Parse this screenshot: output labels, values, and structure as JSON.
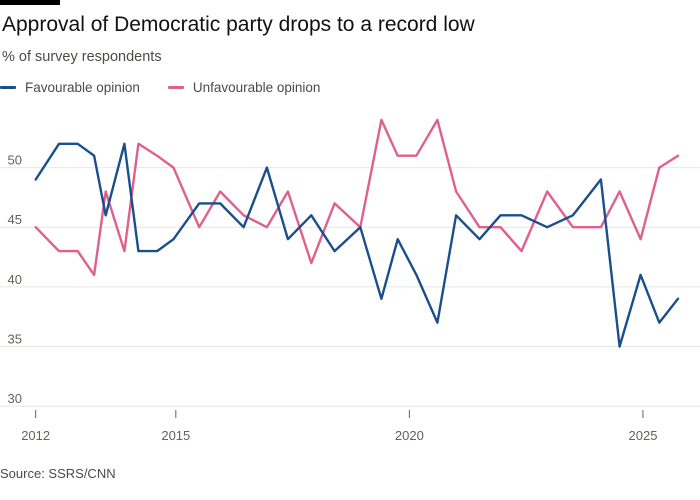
{
  "chart_data": {
    "type": "line",
    "title": "Approval of Democratic party drops to a record low",
    "subtitle": "% of survey respondents",
    "source": "Source: SSRS/CNN",
    "xlabel": "",
    "ylabel": "",
    "xlim": [
      2011.9,
      2025.75
    ],
    "ylim": [
      29,
      55
    ],
    "yticks": [
      30,
      35,
      40,
      45,
      50
    ],
    "xticks": [
      {
        "value": 2012,
        "label": "2012"
      },
      {
        "value": 2015,
        "label": "2015"
      },
      {
        "value": 2020,
        "label": "2020"
      },
      {
        "value": 2025,
        "label": "2025"
      }
    ],
    "legend_position": "top-left",
    "series": [
      {
        "name": "Favourable opinion",
        "color": "#1a4f8c",
        "x": [
          2012.0,
          2012.5,
          2012.9,
          2013.25,
          2013.5,
          2013.9,
          2014.2,
          2014.6,
          2014.95,
          2015.5,
          2015.95,
          2016.45,
          2016.95,
          2017.4,
          2017.9,
          2018.4,
          2018.95,
          2019.4,
          2019.75,
          2020.15,
          2020.6,
          2021.0,
          2021.5,
          2021.95,
          2022.4,
          2022.95,
          2023.5,
          2024.1,
          2024.5,
          2024.95,
          2025.35,
          2025.75
        ],
        "y": [
          49,
          52,
          52,
          51,
          46,
          52,
          43,
          43,
          44,
          47,
          47,
          45,
          50,
          44,
          46,
          43,
          45,
          39,
          44,
          41,
          37,
          46,
          44,
          46,
          46,
          45,
          46,
          49,
          35,
          41,
          37,
          39
        ]
      },
      {
        "name": "Unfavourable opinion",
        "color": "#e0608d",
        "x": [
          2012.0,
          2012.5,
          2012.9,
          2013.25,
          2013.5,
          2013.9,
          2014.2,
          2014.6,
          2014.95,
          2015.5,
          2015.95,
          2016.45,
          2016.95,
          2017.4,
          2017.9,
          2018.4,
          2018.95,
          2019.4,
          2019.75,
          2020.15,
          2020.6,
          2021.0,
          2021.5,
          2021.95,
          2022.4,
          2022.95,
          2023.5,
          2024.1,
          2024.5,
          2024.95,
          2025.35,
          2025.75
        ],
        "y": [
          45,
          43,
          43,
          41,
          48,
          43,
          52,
          51,
          50,
          45,
          48,
          46,
          45,
          48,
          42,
          47,
          45,
          54,
          51,
          51,
          54,
          48,
          45,
          45,
          43,
          48,
          45,
          45,
          48,
          44,
          50,
          51
        ]
      }
    ]
  }
}
